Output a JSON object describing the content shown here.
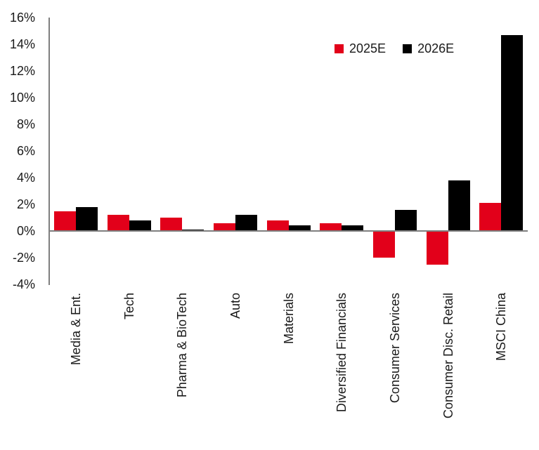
{
  "chart_data": {
    "type": "bar",
    "title": "",
    "xlabel": "",
    "ylabel": "",
    "categories": [
      "Media & Ent.",
      "Tech",
      "Pharma & BioTech",
      "Auto",
      "Materials",
      "Diversified Financials",
      "Consumer Services",
      "Consumer Disc. Retail",
      "MSCI China"
    ],
    "series": [
      {
        "name": "2025E",
        "color": "#e2001a",
        "values": [
          1.5,
          1.2,
          1.0,
          0.6,
          0.8,
          0.6,
          -2.0,
          -2.5,
          2.1
        ]
      },
      {
        "name": "2026E",
        "color": "#000000",
        "values": [
          1.8,
          0.8,
          0.1,
          1.2,
          0.4,
          0.4,
          1.6,
          3.8,
          14.7
        ]
      }
    ],
    "ylim": [
      -4,
      16
    ],
    "y_tick_step": 2,
    "y_ticks": [
      "16%",
      "14%",
      "12%",
      "10%",
      "8%",
      "6%",
      "4%",
      "2%",
      "0%",
      "-2%",
      "-4%"
    ],
    "grid": false,
    "legend_position": "top-right",
    "bar_orientation": "vertical",
    "x_label_rotation_deg": 90,
    "colors": {
      "axis_line": "#7f7f7f",
      "text": "#1a1a1a",
      "background": "#ffffff"
    }
  }
}
